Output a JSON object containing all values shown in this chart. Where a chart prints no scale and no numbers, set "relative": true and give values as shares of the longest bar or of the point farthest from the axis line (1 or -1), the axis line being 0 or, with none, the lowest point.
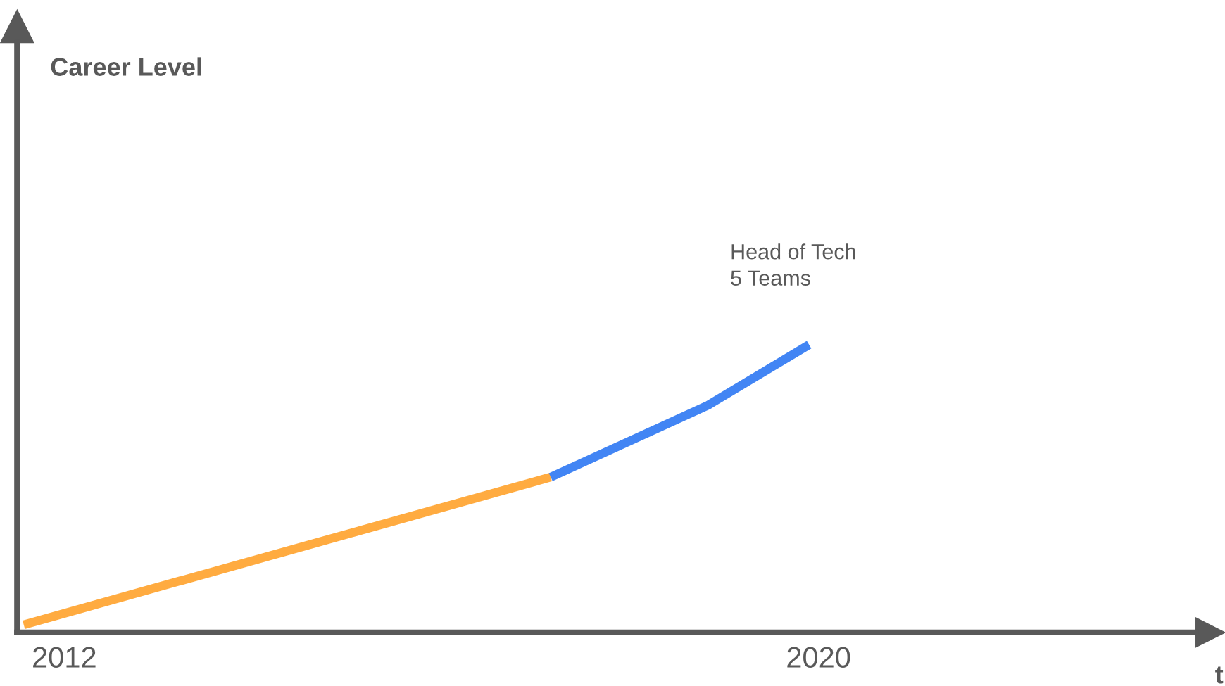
{
  "chart_data": {
    "type": "line",
    "relative": true,
    "xlabel": "t",
    "xlim": [
      2011.5,
      2024.0
    ],
    "xticks": [
      2012,
      2020
    ],
    "series": [
      {
        "color": "#ffab40",
        "x": [
          2011.57,
          2017.16
        ],
        "values": [
          0.027,
          0.54
        ]
      },
      {
        "color": "#4285f4",
        "x": [
          2017.16,
          2018.83,
          2019.9
        ],
        "values": [
          0.54,
          0.79,
          1
        ]
      }
    ],
    "annotations": [
      "Career Level",
      "Head of Tech\n5 Teams"
    ],
    "grid": false,
    "legend": false,
    "marker": "none",
    "line_style": "solid"
  }
}
